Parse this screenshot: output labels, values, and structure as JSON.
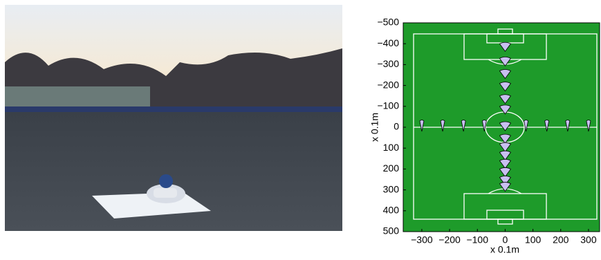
{
  "chart_data": {
    "type": "scatter",
    "xlabel": "x 0.1m",
    "ylabel": "x 0.1m",
    "xlim": [
      -367,
      340
    ],
    "ylim": [
      -500,
      500
    ],
    "y_inverted": true,
    "xticks": [
      {
        "value": -300,
        "label": "−300"
      },
      {
        "value": -200,
        "label": "−200"
      },
      {
        "value": -100,
        "label": "−100"
      },
      0,
      100,
      200,
      300
    ],
    "yticks": [
      {
        "value": -500,
        "label": "−500"
      },
      {
        "value": -400,
        "label": "−400"
      },
      {
        "value": -300,
        "label": "−300"
      },
      {
        "value": -200,
        "label": "−200"
      },
      {
        "value": -100,
        "label": "−100"
      },
      0,
      100,
      200,
      300,
      400,
      500
    ],
    "color": "#c8c0f0",
    "x": [
      0,
      0,
      0,
      0,
      0,
      0,
      0,
      0,
      0,
      0,
      0,
      0,
      0,
      0,
      -300,
      -225,
      -150,
      -75,
      75,
      150,
      225,
      300
    ],
    "values": [
      -380,
      -310,
      -250,
      -190,
      -130,
      -80,
      0,
      60,
      100,
      140,
      180,
      220,
      260,
      290,
      0,
      0,
      0,
      0,
      0,
      0,
      0,
      0
    ]
  }
}
